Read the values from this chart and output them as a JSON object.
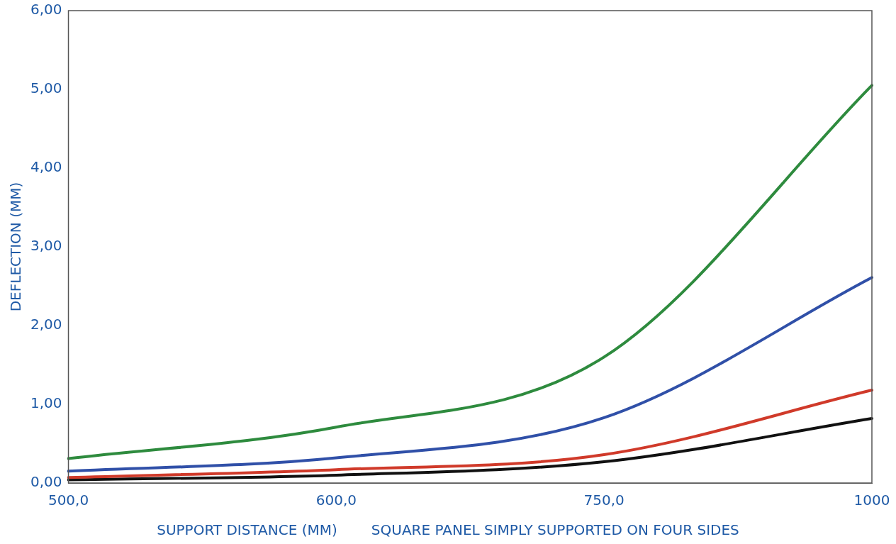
{
  "chart_data": {
    "type": "line",
    "xlabel": "SUPPORT DISTANCE (MM)",
    "ylabel": "DEFLECTION (MM)",
    "annotations": [
      "SQUARE PANEL SIMPLY SUPPORTED ON FOUR SIDES"
    ],
    "categories": [
      "500,0",
      "600,0",
      "750,0",
      "1000"
    ],
    "series": [
      {
        "color": "#2e8b3e",
        "values": [
          0.31,
          0.71,
          1.6,
          5.05
        ]
      },
      {
        "color": "#3050a8",
        "values": [
          0.15,
          0.32,
          0.83,
          2.61
        ]
      },
      {
        "color": "#d03a2a",
        "values": [
          0.07,
          0.17,
          0.36,
          1.18
        ]
      },
      {
        "color": "#111111",
        "values": [
          0.04,
          0.1,
          0.27,
          0.82
        ]
      }
    ],
    "ylim": [
      0,
      6
    ],
    "yticks": [
      {
        "value": 0,
        "label": "0,00"
      },
      {
        "value": 1,
        "label": "1,00"
      },
      {
        "value": 2,
        "label": "2,00"
      },
      {
        "value": 3,
        "label": "3,00"
      },
      {
        "value": 4,
        "label": "4,00"
      },
      {
        "value": 5,
        "label": "5,00"
      },
      {
        "value": 6,
        "label": "6,00"
      }
    ],
    "grid": false,
    "legend": false,
    "marker": "none",
    "line_style": "solid"
  }
}
